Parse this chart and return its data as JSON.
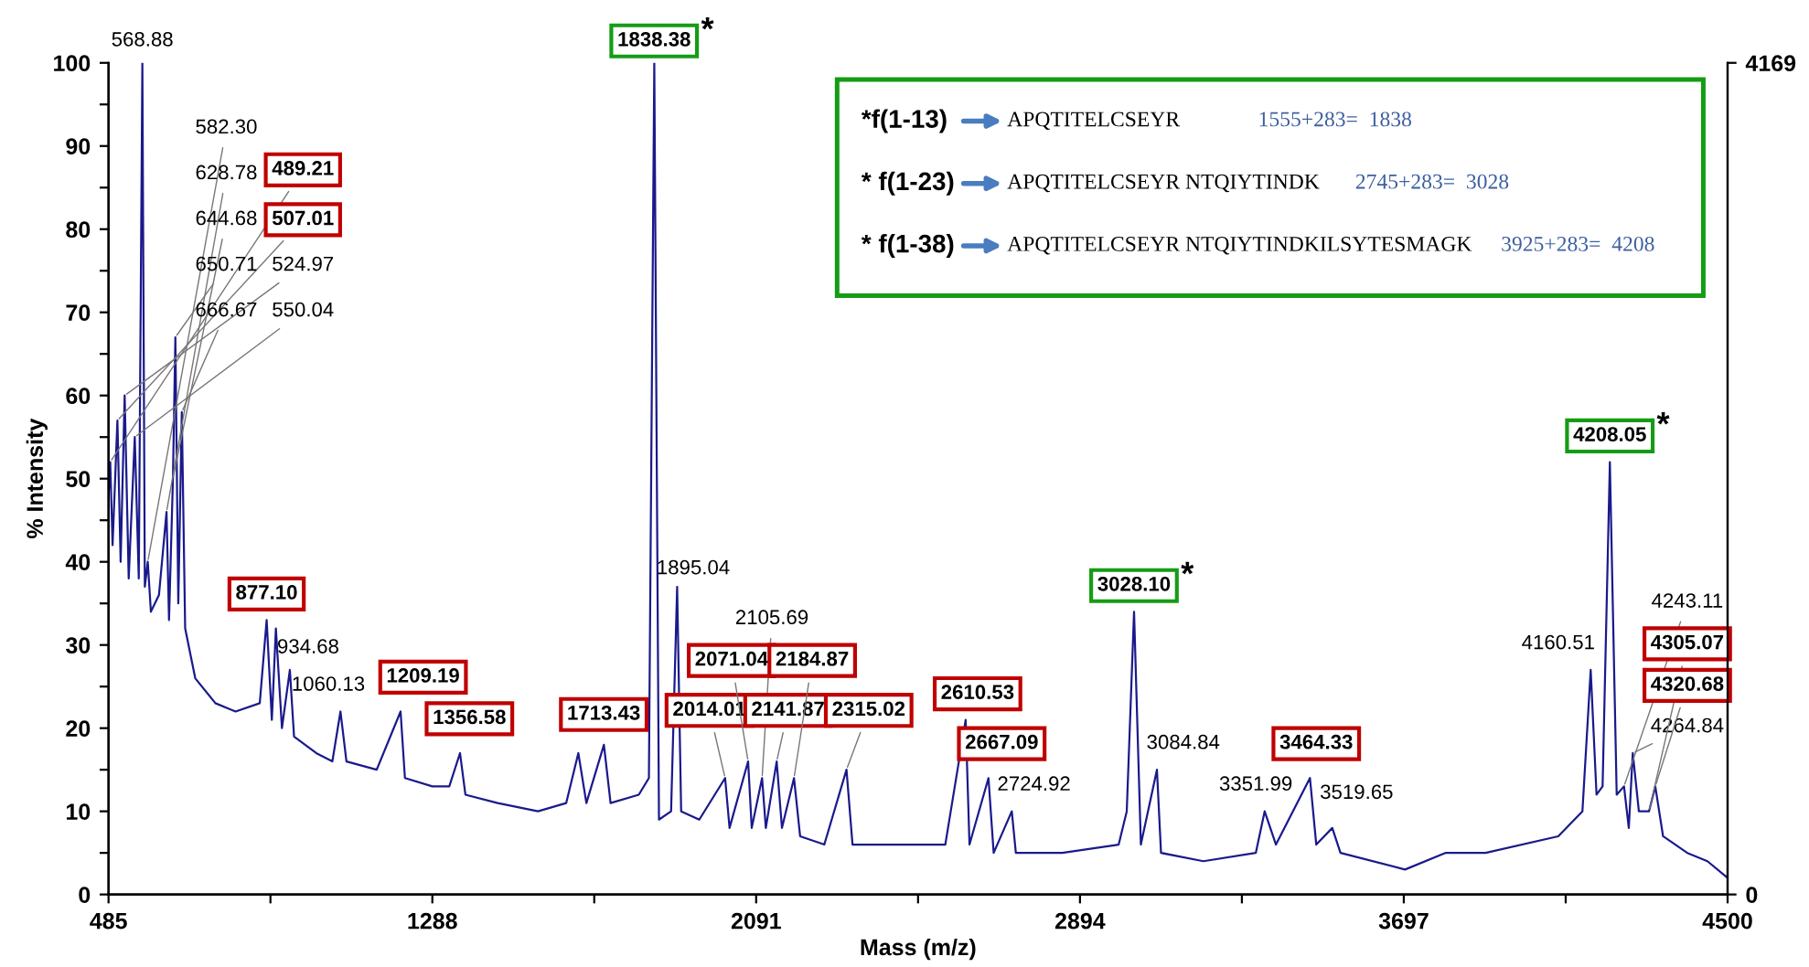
{
  "chart_data": {
    "type": "line",
    "xlabel": "Mass (m/z)",
    "ylabel": "% Intensity",
    "xlim": [
      485,
      4500
    ],
    "xticks": [
      485,
      {
        "value": 886.5,
        "label": null
      },
      1288,
      {
        "value": 1689.5,
        "label": null
      },
      2091,
      {
        "value": 2492.5,
        "label": null
      },
      2894,
      {
        "value": 3295.5,
        "label": null
      },
      3697,
      {
        "value": 4098.5,
        "label": null
      },
      4500
    ],
    "ylim": [
      0,
      100
    ],
    "yticks": [
      0,
      {
        "value": 5,
        "label": null
      },
      10,
      {
        "value": 15,
        "label": null
      },
      20,
      {
        "value": 25,
        "label": null
      },
      30,
      {
        "value": 35,
        "label": null
      },
      40,
      {
        "value": 45,
        "label": null
      },
      50,
      {
        "value": 55,
        "label": null
      },
      60,
      {
        "value": 65,
        "label": null
      },
      70,
      {
        "value": 75,
        "label": null
      },
      80,
      {
        "value": 85,
        "label": null
      },
      90,
      {
        "value": 95,
        "label": null
      },
      100
    ],
    "y2lim": [
      0,
      4169
    ],
    "y2ticks": [
      0,
      4169
    ],
    "grid": false,
    "legend": false,
    "marker": "none",
    "line_style": "solid",
    "series": [
      {
        "color": "#1a1a8c",
        "x": [
          485,
          489.21,
          495,
          507.01,
          515,
          524.97,
          535,
          550.04,
          560,
          568.88,
          575,
          582.3,
          590,
          610,
          628.78,
          635,
          644.68,
          650.71,
          658,
          666.67,
          675,
          700,
          750,
          800,
          860,
          877.1,
          890,
          900,
          915,
          934.68,
          945,
          1000,
          1040,
          1060.13,
          1075,
          1150,
          1209.19,
          1220,
          1288,
          1330,
          1356.58,
          1370,
          1450,
          1550,
          1620,
          1650,
          1670,
          1713.43,
          1730,
          1800,
          1825,
          1838.38,
          1850,
          1880,
          1895.04,
          1905,
          1950,
          2014.01,
          2025,
          2071.04,
          2080,
          2105.69,
          2115,
          2141.87,
          2155,
          2184.87,
          2200,
          2260,
          2315.02,
          2330,
          2450,
          2560,
          2610.53,
          2620,
          2667.09,
          2680,
          2724.92,
          2735,
          2850,
          2990,
          3010,
          3028.1,
          3045,
          3084.84,
          3095,
          3200,
          3330,
          3351.99,
          3380,
          3464.33,
          3480,
          3519.65,
          3540,
          3700,
          3800,
          3900,
          4080,
          4140,
          4160.51,
          4175,
          4190,
          4208.05,
          4225,
          4243.11,
          4255,
          4264.84,
          4280,
          4305.07,
          4320.68,
          4340,
          4400,
          4450,
          4500
        ],
        "values": [
          48,
          52,
          42,
          57,
          40,
          60,
          38,
          55,
          38,
          100,
          37,
          40,
          34,
          36,
          46,
          33,
          50,
          67,
          35,
          58,
          32,
          26,
          23,
          22,
          23,
          33,
          21,
          32,
          20,
          27,
          19,
          17,
          16,
          22,
          16,
          15,
          22,
          14,
          13,
          13,
          17,
          12,
          11,
          10,
          11,
          17,
          11,
          18,
          11,
          12,
          14,
          100,
          9,
          10,
          37,
          10,
          9,
          14,
          8,
          16,
          8,
          14,
          8,
          16,
          8,
          14,
          7,
          6,
          15,
          6,
          6,
          6,
          21,
          6,
          14,
          5,
          10,
          5,
          5,
          6,
          10,
          34,
          6,
          15,
          5,
          4,
          5,
          10,
          6,
          14,
          6,
          8,
          5,
          3,
          5,
          5,
          7,
          10,
          27,
          12,
          13,
          52,
          12,
          13,
          8,
          17,
          10,
          10,
          13,
          7,
          5,
          4,
          2
        ]
      }
    ],
    "annotations": [
      {
        "text": "489.21",
        "x": 489.21,
        "y": 52
      },
      {
        "text": "507.01",
        "x": 507.01,
        "y": 57
      },
      {
        "text": "524.97",
        "x": 524.97,
        "y": 60
      },
      {
        "text": "550.04",
        "x": 550.04,
        "y": 55
      },
      {
        "text": "568.88",
        "x": 568.88,
        "y": 100
      },
      {
        "text": "582.30",
        "x": 582.3,
        "y": 40
      },
      {
        "text": "628.78",
        "x": 628.78,
        "y": 46
      },
      {
        "text": "644.68",
        "x": 644.68,
        "y": 50
      },
      {
        "text": "650.71",
        "x": 650.71,
        "y": 67
      },
      {
        "text": "666.67",
        "x": 666.67,
        "y": 58
      },
      {
        "text": "877.10",
        "x": 877.1,
        "y": 33
      },
      {
        "text": "934.68",
        "x": 934.68,
        "y": 27
      },
      {
        "text": "1060.13",
        "x": 1060.13,
        "y": 22
      },
      {
        "text": "1209.19",
        "x": 1209.19,
        "y": 22
      },
      {
        "text": "1356.58",
        "x": 1356.58,
        "y": 17
      },
      {
        "text": "1713.43",
        "x": 1713.43,
        "y": 18
      },
      {
        "text": "1838.38",
        "x": 1838.38,
        "y": 100
      },
      {
        "text": "1895.04",
        "x": 1895.04,
        "y": 37
      },
      {
        "text": "2014.01",
        "x": 2014.01,
        "y": 14
      },
      {
        "text": "2071.04",
        "x": 2071.04,
        "y": 16
      },
      {
        "text": "2105.69",
        "x": 2105.69,
        "y": 14
      },
      {
        "text": "2141.87",
        "x": 2141.87,
        "y": 16
      },
      {
        "text": "2184.87",
        "x": 2184.87,
        "y": 14
      },
      {
        "text": "2315.02",
        "x": 2315.02,
        "y": 15
      },
      {
        "text": "2610.53",
        "x": 2610.53,
        "y": 21
      },
      {
        "text": "2667.09",
        "x": 2667.09,
        "y": 14
      },
      {
        "text": "2724.92",
        "x": 2724.92,
        "y": 10
      },
      {
        "text": "3028.10",
        "x": 3028.1,
        "y": 34
      },
      {
        "text": "3084.84",
        "x": 3084.84,
        "y": 15
      },
      {
        "text": "3351.99",
        "x": 3351.99,
        "y": 10
      },
      {
        "text": "3464.33",
        "x": 3464.33,
        "y": 14
      },
      {
        "text": "3519.65",
        "x": 3519.65,
        "y": 8
      },
      {
        "text": "4160.51",
        "x": 4160.51,
        "y": 27
      },
      {
        "text": "4208.05",
        "x": 4208.05,
        "y": 52
      },
      {
        "text": "4243.11",
        "x": 4243.11,
        "y": 13
      },
      {
        "text": "4264.84",
        "x": 4264.84,
        "y": 17
      },
      {
        "text": "4305.07",
        "x": 4305.07,
        "y": 10
      },
      {
        "text": "4320.68",
        "x": 4320.68,
        "y": 13
      },
      "*",
      "*",
      "*",
      "*f(1-13)",
      "APQTITELCSEYR",
      "1555+283=  1838",
      "* f(1-23)",
      "APQTITELCSEYR NTQIYTINDK",
      "2745+283=  3028",
      "* f(1-38)",
      "APQTITELCSEYR NTQIYTINDKILSYTESMAGK",
      "3925+283=  4208"
    ]
  }
}
